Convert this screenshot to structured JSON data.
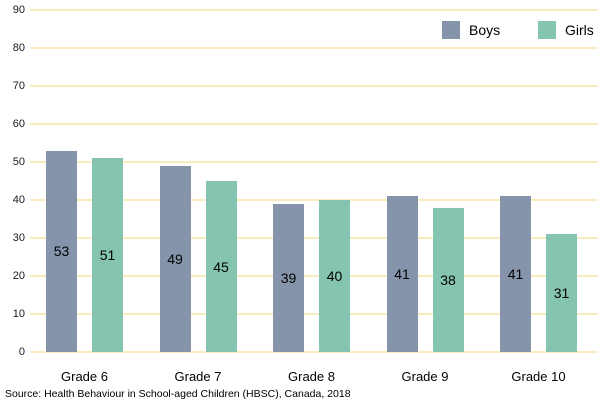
{
  "chart_data": {
    "type": "bar",
    "categories": [
      "Grade 6",
      "Grade 7",
      "Grade 8",
      "Grade 9",
      "Grade 10"
    ],
    "series": [
      {
        "name": "Boys",
        "values": [
          53,
          49,
          39,
          41,
          41
        ],
        "color": "#8594AB"
      },
      {
        "name": "Girls",
        "values": [
          51,
          45,
          40,
          38,
          31
        ],
        "color": "#84C4B0"
      }
    ],
    "title": "",
    "xlabel": "",
    "ylabel": "",
    "ylim": [
      0,
      90
    ],
    "ytick_step": 10,
    "grid": true,
    "gridline_color": "#F9ECBC",
    "legend_position": "top-right",
    "value_labels": "inside-center"
  },
  "source_note": "Source: Health Behaviour in School-aged Children (HBSC), Canada, 2018"
}
